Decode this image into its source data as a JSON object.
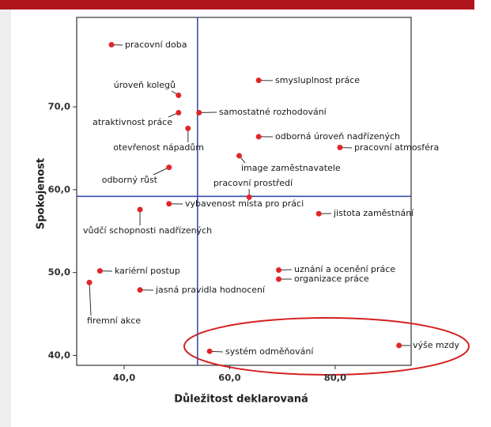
{
  "chart_data": {
    "type": "scatter",
    "x_label": "Důležitost deklarovaná",
    "y_label": "Spokojenost",
    "labels": [
      "pracovní doba",
      "smysluplnost práce",
      "úroveň kolegů",
      "atraktivnost práce",
      "samostatné rozhodování",
      "otevřenost nápadům",
      "odborná úroveň nadřízených",
      "pracovní atmosféra",
      "image zaměstnavatele",
      "odborný růst",
      "pracovní prostředí",
      "vybavenost místa pro práci",
      "vůdčí schopnosti nadřízených",
      "jistota zaměstnání",
      "kariérní postup",
      "uznání a ocenění práce",
      "organizace práce",
      "firemní akce",
      "jasná pravidla hodnocení",
      "systém odměňování",
      "výše mzdy"
    ],
    "x": [
      37.6,
      65.5,
      50.3,
      50.3,
      54.2,
      52.1,
      65.5,
      80.9,
      61.8,
      48.5,
      63.7,
      48.5,
      43.0,
      76.9,
      35.4,
      69.3,
      69.3,
      33.4,
      43.0,
      56.2,
      92.1
    ],
    "values": [
      77.5,
      73.2,
      71.4,
      69.3,
      69.3,
      67.4,
      66.4,
      65.1,
      64.1,
      62.7,
      59.1,
      58.3,
      57.6,
      57.1,
      50.2,
      50.3,
      49.2,
      48.8,
      47.9,
      40.5,
      41.2
    ],
    "color": "#e0262a",
    "reference_lines": {
      "x": 53.9,
      "y": 59.2,
      "color": "#3a4fa8"
    },
    "xlim": [
      31.0,
      94.4
    ],
    "ylim": [
      38.8,
      80.8
    ],
    "xticks": [
      {
        "value": 40,
        "label": "40,0"
      },
      {
        "value": 60,
        "label": "60,0"
      },
      {
        "value": 80,
        "label": "80,0"
      }
    ],
    "yticks": [
      {
        "value": 40,
        "label": "40,0"
      },
      {
        "value": 50,
        "label": "50,0"
      },
      {
        "value": 60,
        "label": "60,0"
      },
      {
        "value": 70,
        "label": "70,0"
      }
    ]
  }
}
